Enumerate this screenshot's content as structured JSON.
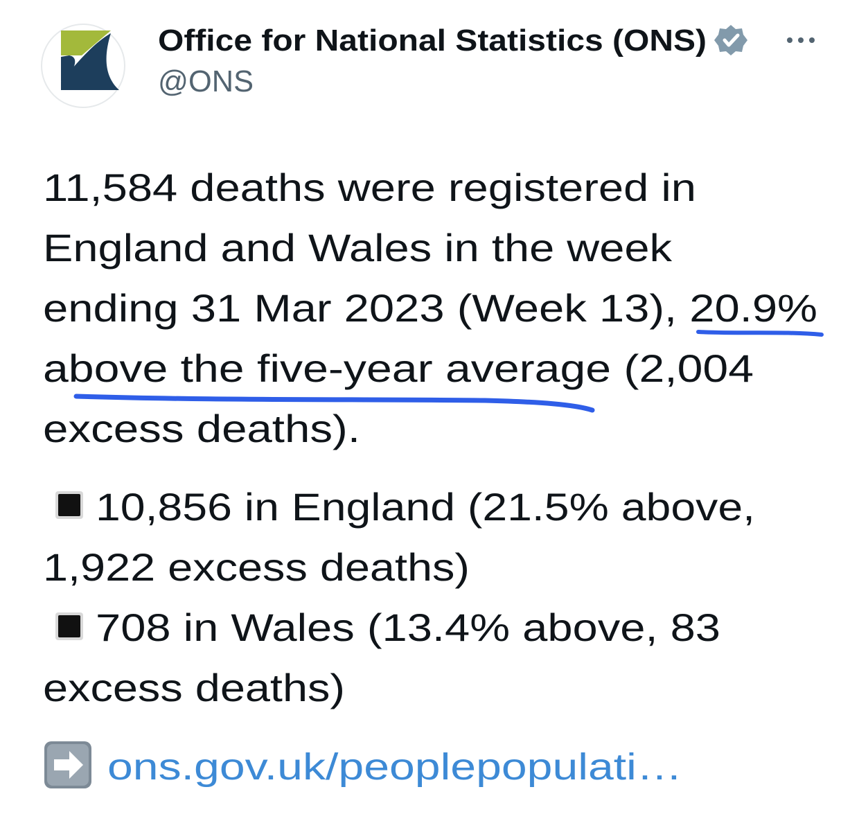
{
  "header": {
    "name": "Office for National Statistics (ONS)",
    "handle": "@ONS"
  },
  "body": {
    "lines": [
      "11,584 deaths were registered in",
      "England and Wales in the week",
      "ending 31 Mar 2023 (Week 13), 20.9%",
      "above the five-year average (2,004",
      "excess deaths)."
    ]
  },
  "bullets": [
    {
      "lines": [
        "10,856 in England (21.5% above,",
        "1,922 excess deaths)"
      ]
    },
    {
      "lines": [
        "708 in Wales (13.4% above, 83",
        "excess deaths)"
      ]
    }
  ],
  "link": "ons.gov.uk/peoplepopulati…"
}
